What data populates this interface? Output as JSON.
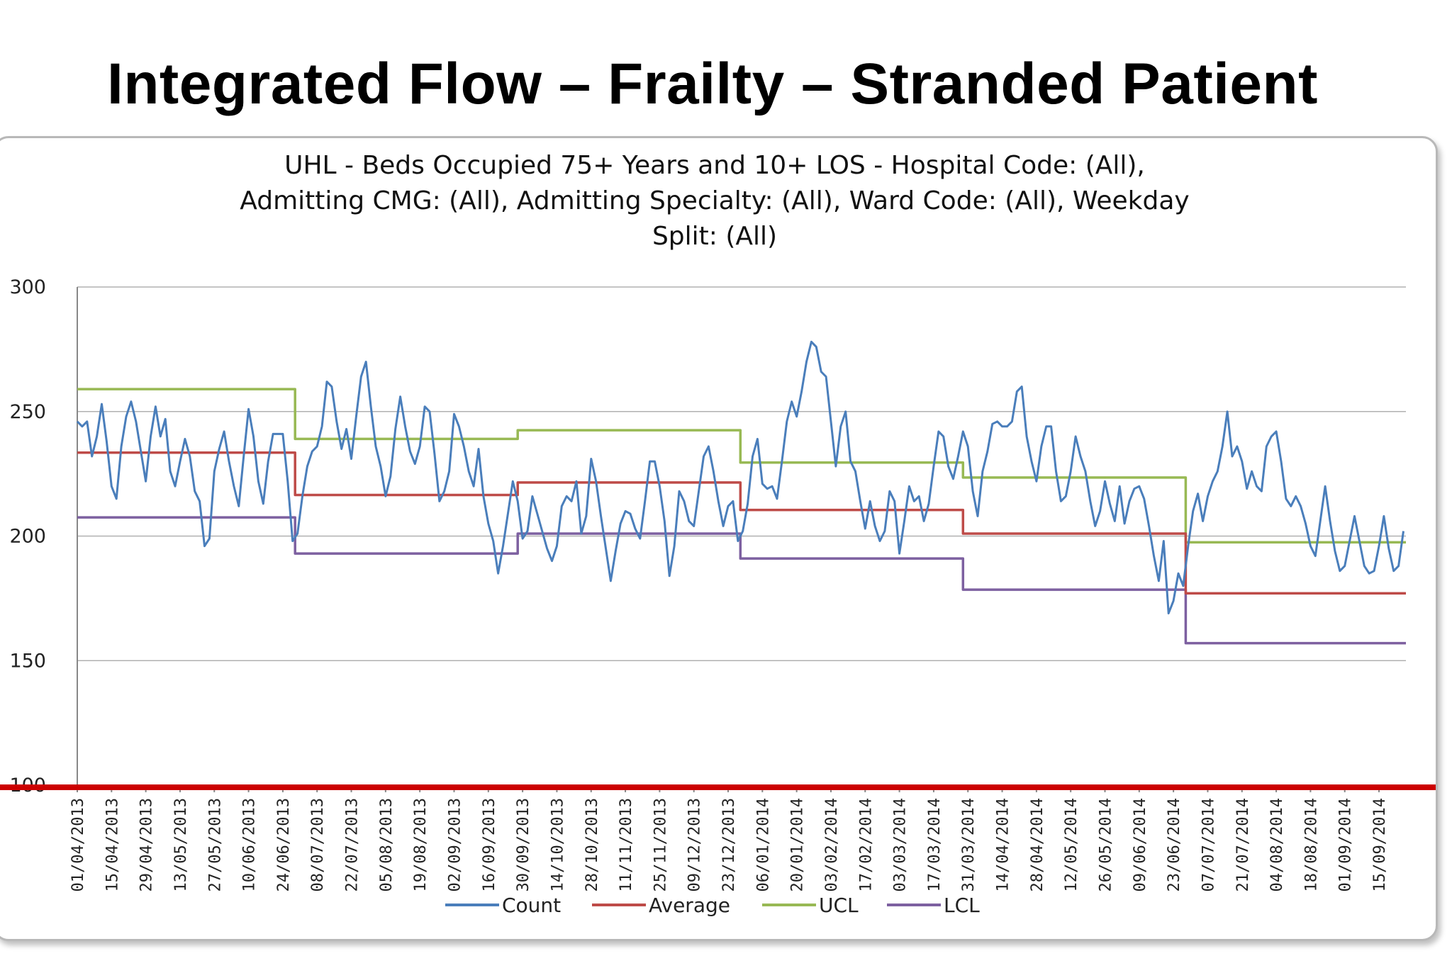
{
  "slide": {
    "title": "Integrated Flow – Frailty – Stranded Patient"
  },
  "colors": {
    "count": "#4a7ebb",
    "average": "#be4b48",
    "ucl": "#98b954",
    "lcl": "#7d60a0",
    "threshold": "#cc0000",
    "grid": "#b0b0b0"
  },
  "chart_data": {
    "type": "line",
    "title_lines": [
      "UHL - Beds Occupied 75+ Years and 10+ LOS - Hospital Code: (All),",
      "Admitting CMG: (All), Admitting Specialty: (All), Ward Code: (All), Weekday",
      "Split: (All)"
    ],
    "xlabel": "",
    "ylabel": "",
    "ylim": [
      100,
      300
    ],
    "y_ticks": [
      100,
      150,
      200,
      250,
      300
    ],
    "grid": true,
    "legend_position": "bottom",
    "x_ticks": [
      "01/04/2013",
      "15/04/2013",
      "29/04/2013",
      "13/05/2013",
      "27/05/2013",
      "10/06/2013",
      "24/06/2013",
      "08/07/2013",
      "22/07/2013",
      "05/08/2013",
      "19/08/2013",
      "02/09/2013",
      "16/09/2013",
      "30/09/2013",
      "14/10/2013",
      "28/10/2013",
      "11/11/2013",
      "25/11/2013",
      "09/12/2013",
      "23/12/2013",
      "06/01/2014",
      "20/01/2014",
      "03/02/2014",
      "17/02/2014",
      "03/03/2014",
      "17/03/2014",
      "31/03/2014",
      "14/04/2014",
      "28/04/2014",
      "12/05/2014",
      "26/05/2014",
      "09/06/2014",
      "23/06/2014",
      "07/07/2014",
      "21/07/2014",
      "04/08/2014",
      "18/08/2014",
      "01/09/2014",
      "15/09/2014"
    ],
    "x_domain_days": [
      0,
      543
    ],
    "series": [
      {
        "name": "Count",
        "points": [
          [
            0,
            246
          ],
          [
            2,
            244
          ],
          [
            4,
            246
          ],
          [
            6,
            232
          ],
          [
            8,
            240
          ],
          [
            10,
            253
          ],
          [
            12,
            238
          ],
          [
            14,
            220
          ],
          [
            16,
            215
          ],
          [
            18,
            236
          ],
          [
            20,
            248
          ],
          [
            22,
            254
          ],
          [
            24,
            246
          ],
          [
            26,
            234
          ],
          [
            28,
            222
          ],
          [
            30,
            240
          ],
          [
            32,
            252
          ],
          [
            34,
            240
          ],
          [
            36,
            247
          ],
          [
            38,
            226
          ],
          [
            40,
            220
          ],
          [
            42,
            230
          ],
          [
            44,
            239
          ],
          [
            46,
            232
          ],
          [
            48,
            218
          ],
          [
            50,
            214
          ],
          [
            52,
            196
          ],
          [
            54,
            199
          ],
          [
            56,
            226
          ],
          [
            58,
            235
          ],
          [
            60,
            242
          ],
          [
            62,
            230
          ],
          [
            64,
            220
          ],
          [
            66,
            212
          ],
          [
            68,
            232
          ],
          [
            70,
            251
          ],
          [
            72,
            240
          ],
          [
            74,
            222
          ],
          [
            76,
            213
          ],
          [
            78,
            230
          ],
          [
            80,
            241
          ],
          [
            82,
            241
          ],
          [
            84,
            241
          ],
          [
            86,
            222
          ],
          [
            88,
            198
          ],
          [
            90,
            201
          ],
          [
            92,
            216
          ],
          [
            94,
            228
          ],
          [
            96,
            234
          ],
          [
            98,
            236
          ],
          [
            100,
            244
          ],
          [
            102,
            262
          ],
          [
            104,
            260
          ],
          [
            106,
            246
          ],
          [
            108,
            235
          ],
          [
            110,
            243
          ],
          [
            112,
            231
          ],
          [
            114,
            248
          ],
          [
            116,
            264
          ],
          [
            118,
            270
          ],
          [
            120,
            252
          ],
          [
            122,
            236
          ],
          [
            124,
            228
          ],
          [
            126,
            216
          ],
          [
            128,
            224
          ],
          [
            130,
            243
          ],
          [
            132,
            256
          ],
          [
            134,
            244
          ],
          [
            136,
            234
          ],
          [
            138,
            229
          ],
          [
            140,
            236
          ],
          [
            142,
            252
          ],
          [
            144,
            250
          ],
          [
            146,
            233
          ],
          [
            148,
            214
          ],
          [
            150,
            218
          ],
          [
            152,
            226
          ],
          [
            154,
            249
          ],
          [
            156,
            244
          ],
          [
            158,
            236
          ],
          [
            160,
            226
          ],
          [
            162,
            220
          ],
          [
            164,
            235
          ],
          [
            166,
            216
          ],
          [
            168,
            205
          ],
          [
            170,
            198
          ],
          [
            172,
            185
          ],
          [
            174,
            196
          ],
          [
            176,
            209
          ],
          [
            178,
            222
          ],
          [
            180,
            214
          ],
          [
            182,
            199
          ],
          [
            184,
            202
          ],
          [
            186,
            216
          ],
          [
            188,
            209
          ],
          [
            190,
            202
          ],
          [
            192,
            195
          ],
          [
            194,
            190
          ],
          [
            196,
            196
          ],
          [
            198,
            212
          ],
          [
            200,
            216
          ],
          [
            202,
            214
          ],
          [
            204,
            222
          ],
          [
            206,
            201
          ],
          [
            208,
            208
          ],
          [
            210,
            231
          ],
          [
            212,
            222
          ],
          [
            214,
            208
          ],
          [
            216,
            195
          ],
          [
            218,
            182
          ],
          [
            220,
            194
          ],
          [
            222,
            205
          ],
          [
            224,
            210
          ],
          [
            226,
            209
          ],
          [
            228,
            203
          ],
          [
            230,
            199
          ],
          [
            232,
            214
          ],
          [
            234,
            230
          ],
          [
            236,
            230
          ],
          [
            238,
            220
          ],
          [
            240,
            206
          ],
          [
            242,
            184
          ],
          [
            244,
            196
          ],
          [
            246,
            218
          ],
          [
            248,
            214
          ],
          [
            250,
            206
          ],
          [
            252,
            204
          ],
          [
            254,
            218
          ],
          [
            256,
            232
          ],
          [
            258,
            236
          ],
          [
            260,
            226
          ],
          [
            262,
            214
          ],
          [
            264,
            204
          ],
          [
            266,
            212
          ],
          [
            268,
            214
          ],
          [
            270,
            198
          ],
          [
            272,
            202
          ],
          [
            274,
            213
          ],
          [
            276,
            232
          ],
          [
            278,
            239
          ],
          [
            280,
            221
          ],
          [
            282,
            219
          ],
          [
            284,
            220
          ],
          [
            286,
            215
          ],
          [
            288,
            230
          ],
          [
            290,
            246
          ],
          [
            292,
            254
          ],
          [
            294,
            248
          ],
          [
            296,
            258
          ],
          [
            298,
            270
          ],
          [
            300,
            278
          ],
          [
            302,
            276
          ],
          [
            304,
            266
          ],
          [
            306,
            264
          ],
          [
            308,
            246
          ],
          [
            310,
            228
          ],
          [
            312,
            244
          ],
          [
            314,
            250
          ],
          [
            316,
            230
          ],
          [
            318,
            226
          ],
          [
            320,
            214
          ],
          [
            322,
            203
          ],
          [
            324,
            214
          ],
          [
            326,
            204
          ],
          [
            328,
            198
          ],
          [
            330,
            202
          ],
          [
            332,
            218
          ],
          [
            334,
            214
          ],
          [
            336,
            193
          ],
          [
            338,
            206
          ],
          [
            340,
            220
          ],
          [
            342,
            214
          ],
          [
            344,
            216
          ],
          [
            346,
            206
          ],
          [
            348,
            213
          ],
          [
            350,
            228
          ],
          [
            352,
            242
          ],
          [
            354,
            240
          ],
          [
            356,
            228
          ],
          [
            358,
            223
          ],
          [
            360,
            232
          ],
          [
            362,
            242
          ],
          [
            364,
            236
          ],
          [
            366,
            218
          ],
          [
            368,
            208
          ],
          [
            370,
            226
          ],
          [
            372,
            234
          ],
          [
            374,
            245
          ],
          [
            376,
            246
          ],
          [
            378,
            244
          ],
          [
            380,
            244
          ],
          [
            382,
            246
          ],
          [
            384,
            258
          ],
          [
            386,
            260
          ],
          [
            388,
            240
          ],
          [
            390,
            230
          ],
          [
            392,
            222
          ],
          [
            394,
            236
          ],
          [
            396,
            244
          ],
          [
            398,
            244
          ],
          [
            400,
            226
          ],
          [
            402,
            214
          ],
          [
            404,
            216
          ],
          [
            406,
            226
          ],
          [
            408,
            240
          ],
          [
            410,
            232
          ],
          [
            412,
            226
          ],
          [
            414,
            214
          ],
          [
            416,
            204
          ],
          [
            418,
            210
          ],
          [
            420,
            222
          ],
          [
            422,
            213
          ],
          [
            424,
            206
          ],
          [
            426,
            220
          ],
          [
            428,
            205
          ],
          [
            430,
            214
          ],
          [
            432,
            219
          ],
          [
            434,
            220
          ],
          [
            436,
            215
          ],
          [
            438,
            204
          ],
          [
            440,
            192
          ],
          [
            442,
            182
          ],
          [
            444,
            198
          ],
          [
            446,
            169
          ],
          [
            448,
            174
          ],
          [
            450,
            185
          ],
          [
            452,
            180
          ],
          [
            454,
            196
          ],
          [
            456,
            210
          ],
          [
            458,
            217
          ],
          [
            460,
            206
          ],
          [
            462,
            216
          ],
          [
            464,
            222
          ],
          [
            466,
            226
          ],
          [
            468,
            236
          ],
          [
            470,
            250
          ],
          [
            472,
            232
          ],
          [
            474,
            236
          ],
          [
            476,
            230
          ],
          [
            478,
            219
          ],
          [
            480,
            226
          ],
          [
            482,
            220
          ],
          [
            484,
            218
          ],
          [
            486,
            236
          ],
          [
            488,
            240
          ],
          [
            490,
            242
          ],
          [
            492,
            230
          ],
          [
            494,
            215
          ],
          [
            496,
            212
          ],
          [
            498,
            216
          ],
          [
            500,
            212
          ],
          [
            502,
            205
          ],
          [
            504,
            196
          ],
          [
            506,
            192
          ],
          [
            508,
            206
          ],
          [
            510,
            220
          ],
          [
            512,
            206
          ],
          [
            514,
            194
          ],
          [
            516,
            186
          ],
          [
            518,
            188
          ],
          [
            520,
            198
          ],
          [
            522,
            208
          ],
          [
            524,
            198
          ],
          [
            526,
            188
          ],
          [
            528,
            185
          ],
          [
            530,
            186
          ],
          [
            532,
            196
          ],
          [
            534,
            208
          ],
          [
            536,
            195
          ],
          [
            538,
            186
          ],
          [
            540,
            188
          ],
          [
            542,
            202
          ]
        ]
      },
      {
        "name": "Average",
        "points": [
          [
            0,
            233.5
          ],
          [
            89,
            233.5
          ],
          [
            89,
            216.5
          ],
          [
            180,
            216.5
          ],
          [
            180,
            221.5
          ],
          [
            271,
            221.5
          ],
          [
            271,
            210.5
          ],
          [
            362,
            210.5
          ],
          [
            362,
            201
          ],
          [
            453,
            201
          ],
          [
            453,
            177
          ],
          [
            543,
            177
          ]
        ]
      },
      {
        "name": "UCL",
        "points": [
          [
            0,
            259
          ],
          [
            89,
            259
          ],
          [
            89,
            239
          ],
          [
            180,
            239
          ],
          [
            180,
            242.5
          ],
          [
            271,
            242.5
          ],
          [
            271,
            229.5
          ],
          [
            362,
            229.5
          ],
          [
            362,
            223.5
          ],
          [
            453,
            223.5
          ],
          [
            453,
            197.5
          ],
          [
            543,
            197.5
          ]
        ]
      },
      {
        "name": "LCL",
        "points": [
          [
            0,
            207.5
          ],
          [
            89,
            207.5
          ],
          [
            89,
            193
          ],
          [
            180,
            193
          ],
          [
            180,
            201
          ],
          [
            271,
            201
          ],
          [
            271,
            191
          ],
          [
            362,
            191
          ],
          [
            362,
            178.5
          ],
          [
            453,
            178.5
          ],
          [
            453,
            157
          ],
          [
            543,
            157
          ]
        ]
      }
    ],
    "legend": [
      "Count",
      "Average",
      "UCL",
      "LCL"
    ]
  }
}
